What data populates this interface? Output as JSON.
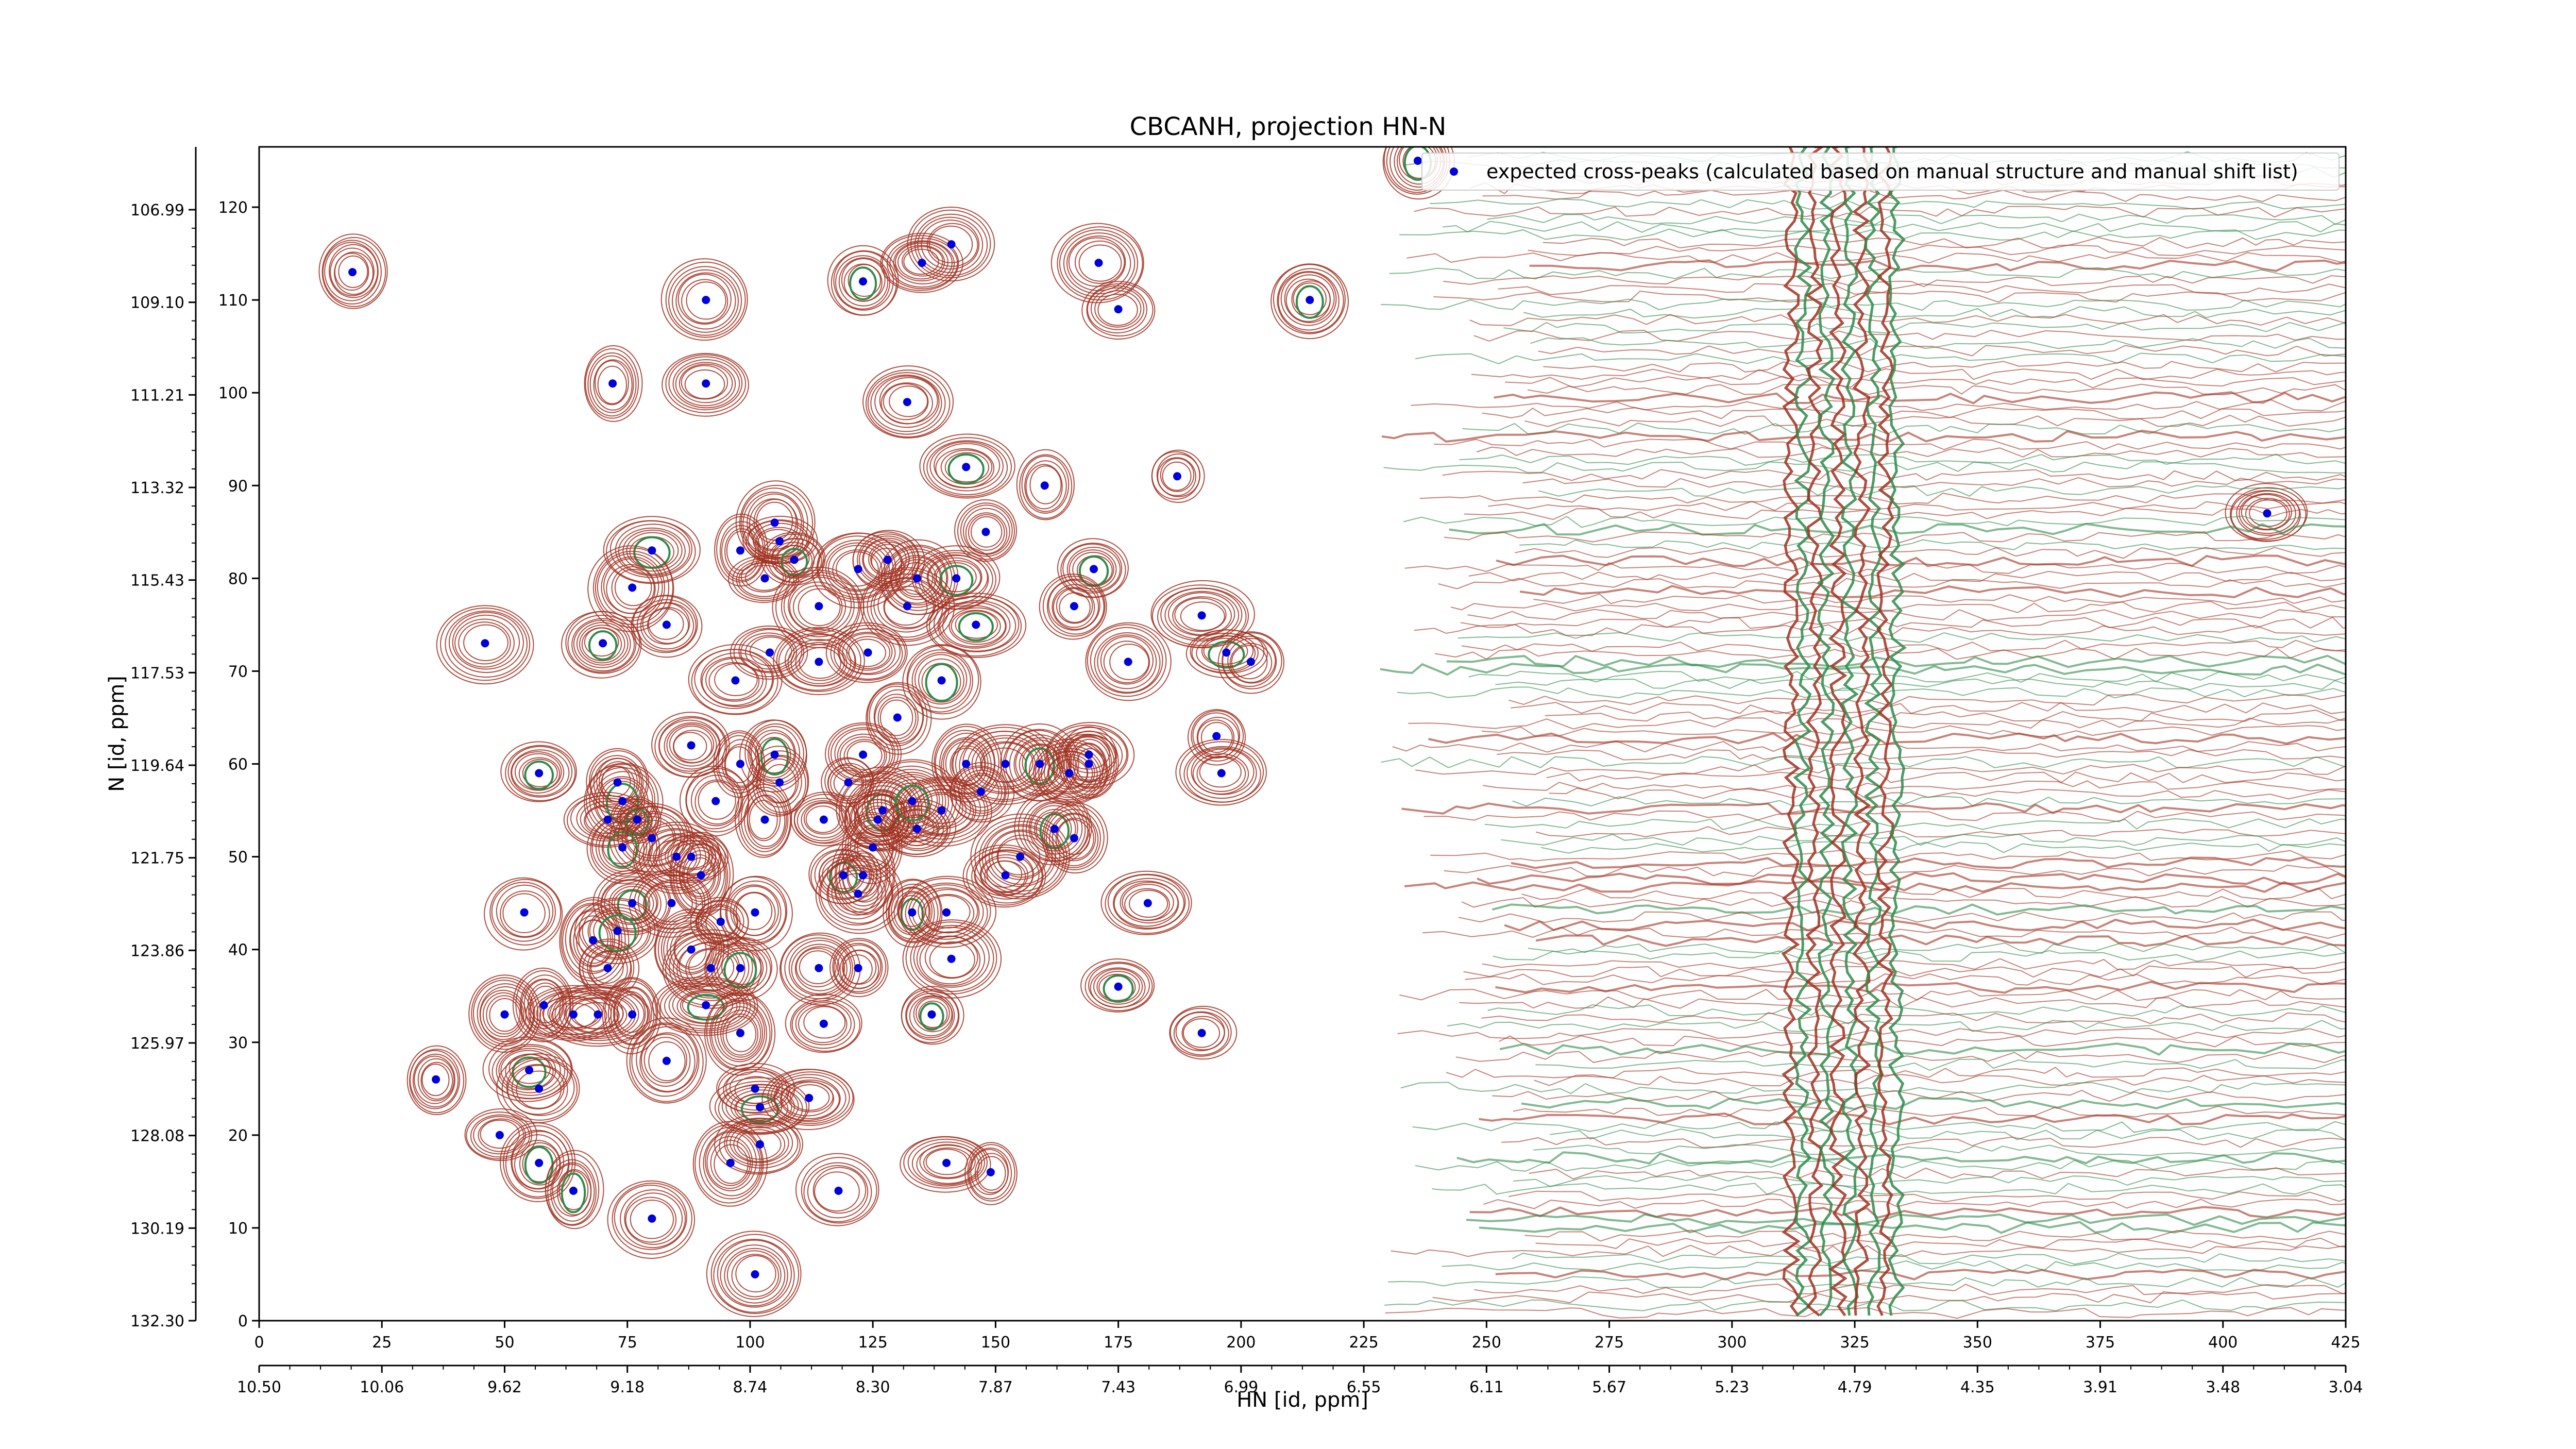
{
  "chart_data": {
    "type": "scatter",
    "title": "CBCANH, projection HN-N",
    "xlabel": "HN [id, ppm]",
    "ylabel": "N [id, ppm]",
    "xlim": [
      0,
      425
    ],
    "ylim": [
      0,
      120
    ],
    "x_index_ticks": [
      "0",
      "25",
      "50",
      "75",
      "100",
      "125",
      "150",
      "175",
      "200",
      "225",
      "250",
      "275",
      "300",
      "325",
      "350",
      "375",
      "400",
      "425"
    ],
    "x_index_tick_values": [
      0,
      25,
      50,
      75,
      100,
      125,
      150,
      175,
      200,
      225,
      250,
      275,
      300,
      325,
      350,
      375,
      400,
      425
    ],
    "x_ppm_ticks": [
      "10.50",
      "10.06",
      "9.62",
      "9.18",
      "8.74",
      "8.30",
      "7.87",
      "7.43",
      "6.99",
      "6.55",
      "6.11",
      "5.67",
      "5.23",
      "4.79",
      "4.35",
      "3.91",
      "3.48",
      "3.04"
    ],
    "y_index_ticks": [
      "0",
      "10",
      "20",
      "30",
      "40",
      "50",
      "60",
      "70",
      "80",
      "90",
      "100",
      "110",
      "120"
    ],
    "y_index_tick_values": [
      0,
      10,
      20,
      30,
      40,
      50,
      60,
      70,
      80,
      90,
      100,
      110,
      120
    ],
    "y_ppm_ticks": [
      "132.30",
      "130.19",
      "128.08",
      "125.97",
      "123.86",
      "121.75",
      "119.64",
      "117.53",
      "115.43",
      "113.32",
      "111.21",
      "109.10",
      "106.99"
    ],
    "legend": {
      "label": "expected cross-peaks (calculated based on manual structure and manual shift list)",
      "placement": "upper-right"
    },
    "contour_colors": {
      "positive": "#a03020",
      "negative": "#2e8b4a"
    },
    "marker_color": "#0000dd",
    "series": [
      {
        "name": "expected cross-peaks (calculated based on manual structure and manual shift list)",
        "points": [
          [
            236,
            125
          ],
          [
            19,
            113
          ],
          [
            141,
            116
          ],
          [
            135,
            114
          ],
          [
            123,
            112
          ],
          [
            91,
            110
          ],
          [
            171,
            114
          ],
          [
            175,
            109
          ],
          [
            214,
            110
          ],
          [
            72,
            101
          ],
          [
            91,
            101
          ],
          [
            132,
            99
          ],
          [
            144,
            92
          ],
          [
            160,
            90
          ],
          [
            187,
            91
          ],
          [
            409,
            87
          ],
          [
            80,
            83
          ],
          [
            98,
            83
          ],
          [
            105,
            86
          ],
          [
            106,
            84
          ],
          [
            109,
            82
          ],
          [
            122,
            81
          ],
          [
            128,
            82
          ],
          [
            134,
            80
          ],
          [
            142,
            80
          ],
          [
            148,
            85
          ],
          [
            76,
            79
          ],
          [
            103,
            80
          ],
          [
            170,
            81
          ],
          [
            114,
            77
          ],
          [
            132,
            77
          ],
          [
            83,
            75
          ],
          [
            146,
            75
          ],
          [
            166,
            77
          ],
          [
            192,
            76
          ],
          [
            46,
            73
          ],
          [
            70,
            73
          ],
          [
            114,
            71
          ],
          [
            104,
            72
          ],
          [
            124,
            72
          ],
          [
            197,
            72
          ],
          [
            202,
            71
          ],
          [
            177,
            71
          ],
          [
            97,
            69
          ],
          [
            139,
            69
          ],
          [
            130,
            65
          ],
          [
            88,
            62
          ],
          [
            98,
            60
          ],
          [
            105,
            61
          ],
          [
            123,
            61
          ],
          [
            144,
            60
          ],
          [
            152,
            60
          ],
          [
            159,
            60
          ],
          [
            169,
            60
          ],
          [
            165,
            59
          ],
          [
            169,
            61
          ],
          [
            57,
            59
          ],
          [
            73,
            58
          ],
          [
            195,
            63
          ],
          [
            196,
            59
          ],
          [
            74,
            56
          ],
          [
            93,
            56
          ],
          [
            106,
            58
          ],
          [
            120,
            58
          ],
          [
            127,
            55
          ],
          [
            139,
            55
          ],
          [
            147,
            57
          ],
          [
            71,
            54
          ],
          [
            77,
            54
          ],
          [
            103,
            54
          ],
          [
            115,
            54
          ],
          [
            126,
            54
          ],
          [
            133,
            56
          ],
          [
            134,
            53
          ],
          [
            85,
            50
          ],
          [
            88,
            50
          ],
          [
            74,
            51
          ],
          [
            80,
            52
          ],
          [
            125,
            51
          ],
          [
            155,
            50
          ],
          [
            162,
            53
          ],
          [
            166,
            52
          ],
          [
            90,
            48
          ],
          [
            152,
            48
          ],
          [
            119,
            48
          ],
          [
            123,
            48
          ],
          [
            122,
            46
          ],
          [
            54,
            44
          ],
          [
            76,
            45
          ],
          [
            84,
            45
          ],
          [
            94,
            43
          ],
          [
            101,
            44
          ],
          [
            133,
            44
          ],
          [
            140,
            44
          ],
          [
            181,
            45
          ],
          [
            68,
            41
          ],
          [
            73,
            42
          ],
          [
            88,
            40
          ],
          [
            71,
            38
          ],
          [
            92,
            38
          ],
          [
            98,
            38
          ],
          [
            114,
            38
          ],
          [
            122,
            38
          ],
          [
            141,
            39
          ],
          [
            175,
            36
          ],
          [
            58,
            34
          ],
          [
            64,
            33
          ],
          [
            69,
            33
          ],
          [
            91,
            34
          ],
          [
            50,
            33
          ],
          [
            76,
            33
          ],
          [
            115,
            32
          ],
          [
            137,
            33
          ],
          [
            98,
            31
          ],
          [
            192,
            31
          ],
          [
            36,
            26
          ],
          [
            55,
            27
          ],
          [
            83,
            28
          ],
          [
            57,
            25
          ],
          [
            101,
            25
          ],
          [
            102,
            23
          ],
          [
            112,
            24
          ],
          [
            49,
            20
          ],
          [
            102,
            19
          ],
          [
            57,
            17
          ],
          [
            140,
            17
          ],
          [
            149,
            16
          ],
          [
            96,
            17
          ],
          [
            64,
            14
          ],
          [
            118,
            14
          ],
          [
            80,
            11
          ],
          [
            101,
            5
          ]
        ]
      }
    ]
  }
}
